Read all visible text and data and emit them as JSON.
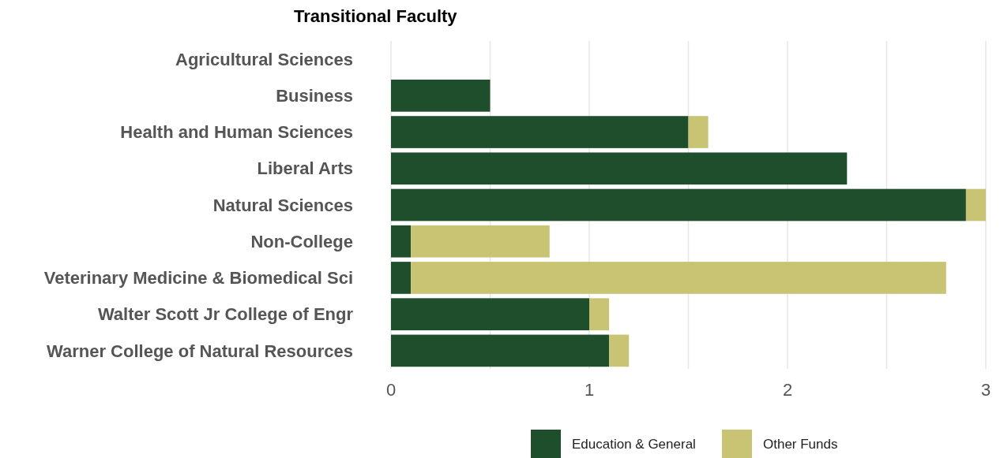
{
  "chart_data": {
    "type": "bar",
    "orientation": "horizontal",
    "stacked": true,
    "title": "Transitional Faculty",
    "categories": [
      "Agricultural Sciences",
      "Business",
      "Health and Human Sciences",
      "Liberal Arts",
      "Natural Sciences",
      "Non-College",
      "Veterinary Medicine & Biomedical Sci",
      "Walter Scott Jr College of Engr",
      "Warner College of Natural Resources"
    ],
    "series": [
      {
        "name": "Education & General",
        "color": "#1f4e2c",
        "values": [
          0,
          0.5,
          1.5,
          2.3,
          2.9,
          0.1,
          0.1,
          1.0,
          1.1
        ]
      },
      {
        "name": "Other Funds",
        "color": "#c8c474",
        "values": [
          0,
          0,
          0.1,
          0,
          0.1,
          0.7,
          2.7,
          0.1,
          0.1
        ]
      }
    ],
    "xlim": [
      0,
      3
    ],
    "xticks": [
      0,
      {
        "value": 0.5,
        "label": null
      },
      1,
      {
        "value": 1.5,
        "label": null
      },
      2,
      {
        "value": 2.5,
        "label": null
      },
      3
    ],
    "grid": "x",
    "legend": "bottom"
  }
}
